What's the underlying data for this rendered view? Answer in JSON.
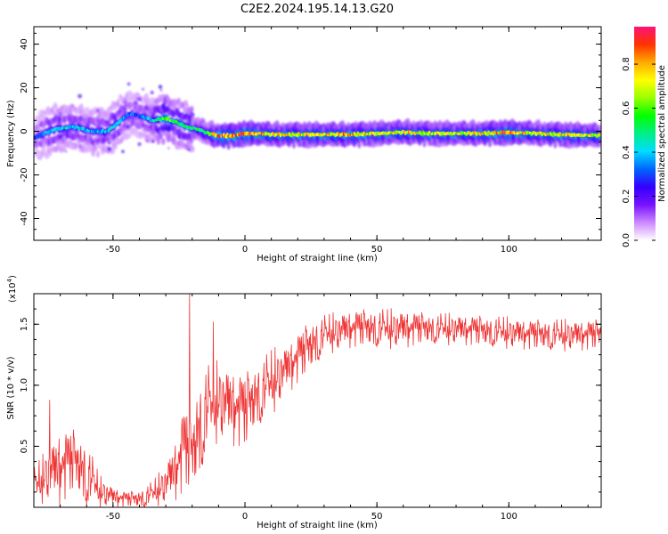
{
  "title": "C2E2.2024.195.14.13.G20",
  "colors": {
    "snr_line": "#ee3333",
    "frame": "#000000"
  },
  "chart_data": [
    {
      "type": "heatmap",
      "name": "spectrogram",
      "xlabel": "Height of straight line (km)",
      "ylabel": "Frequency (Hz)",
      "xlim": [
        -80,
        135
      ],
      "ylim": [
        -50,
        48
      ],
      "xticks": [
        -50,
        0,
        50,
        100
      ],
      "xtick_labels": [
        "-50",
        "0",
        "50",
        "100"
      ],
      "yticks": [
        -40,
        -20,
        0,
        20,
        40
      ],
      "ytick_labels": [
        "-40",
        "-20",
        "0",
        "20",
        "40"
      ],
      "colorbar": {
        "label": "Normalized spectral amplitude",
        "range": [
          0.0,
          0.97
        ],
        "ticks": [
          0.0,
          0.2,
          0.4,
          0.6,
          0.8
        ],
        "tick_labels": [
          "0.0",
          "0.2",
          "0.4",
          "0.6",
          "0.8"
        ],
        "colormap": [
          "#ffffff",
          "#cc88ff",
          "#7711ff",
          "#3300ff",
          "#0066ff",
          "#00ddff",
          "#00ee88",
          "#00ff00",
          "#99ff00",
          "#ffff00",
          "#ffaa00",
          "#ff3300",
          "#ff1177"
        ]
      },
      "ridge": {
        "x": [
          -80,
          -72,
          -65,
          -58,
          -52,
          -48,
          -44,
          -40,
          -35,
          -30,
          -26,
          -22,
          -18,
          -14,
          -10,
          -5,
          0,
          5,
          10,
          20,
          30,
          40,
          50,
          60,
          70,
          80,
          90,
          100,
          110,
          120,
          135
        ],
        "freq": [
          -3,
          1,
          2,
          0,
          0,
          4,
          8,
          7,
          5,
          6,
          4,
          2,
          1,
          -1,
          -2,
          -2,
          -1,
          -1,
          -1.5,
          -1.5,
          -1.5,
          -1.5,
          -1,
          -0.5,
          -1,
          -1,
          -1,
          -0.5,
          -1,
          -1.5,
          -2
        ],
        "amplitude": [
          0.3,
          0.45,
          0.45,
          0.4,
          0.45,
          0.45,
          0.35,
          0.35,
          0.45,
          0.7,
          0.55,
          0.55,
          0.55,
          0.6,
          0.95,
          0.95,
          0.9,
          0.85,
          0.8,
          0.8,
          0.8,
          0.85,
          0.75,
          0.8,
          0.75,
          0.75,
          0.8,
          0.9,
          0.75,
          0.8,
          0.75
        ]
      }
    },
    {
      "type": "line",
      "name": "snr",
      "xlabel": "Height of straight line (km)",
      "ylabel": "SNR (10 * v/v)",
      "scale_label": "(x10",
      "scale_exponent": "4",
      "xlim": [
        -80,
        135
      ],
      "ylim": [
        0.0,
        1.75
      ],
      "xticks": [
        -50,
        0,
        50,
        100
      ],
      "xtick_labels": [
        "-50",
        "0",
        "50",
        "100"
      ],
      "yticks": [
        0.5,
        1.0,
        1.5
      ],
      "ytick_labels": [
        "0.5",
        "1.0",
        "1.5"
      ],
      "envelope": {
        "x": [
          -80,
          -75,
          -70,
          -65,
          -60,
          -55,
          -50,
          -45,
          -40,
          -35,
          -30,
          -26,
          -23,
          -20,
          -18,
          -15,
          -10,
          -5,
          0,
          5,
          10,
          15,
          20,
          25,
          30,
          40,
          50,
          60,
          70,
          80,
          90,
          100,
          110,
          120,
          135
        ],
        "mean": [
          0.15,
          0.25,
          0.3,
          0.35,
          0.25,
          0.12,
          0.08,
          0.06,
          0.06,
          0.1,
          0.18,
          0.3,
          0.45,
          0.4,
          0.55,
          0.75,
          0.85,
          0.8,
          0.75,
          0.9,
          1.0,
          1.1,
          1.2,
          1.3,
          1.4,
          1.45,
          1.45,
          1.45,
          1.45,
          1.45,
          1.43,
          1.42,
          1.4,
          1.4,
          1.4
        ],
        "spread": [
          0.15,
          0.2,
          0.3,
          0.25,
          0.25,
          0.12,
          0.08,
          0.06,
          0.07,
          0.1,
          0.15,
          0.25,
          0.35,
          0.3,
          0.4,
          0.35,
          0.3,
          0.3,
          0.3,
          0.25,
          0.25,
          0.2,
          0.2,
          0.2,
          0.15,
          0.15,
          0.15,
          0.15,
          0.12,
          0.12,
          0.12,
          0.12,
          0.12,
          0.12,
          0.12
        ]
      },
      "spikes": [
        {
          "x": -74,
          "y": 0.88
        },
        {
          "x": -21,
          "y": 1.75
        },
        {
          "x": -12,
          "y": 1.52
        }
      ]
    }
  ]
}
